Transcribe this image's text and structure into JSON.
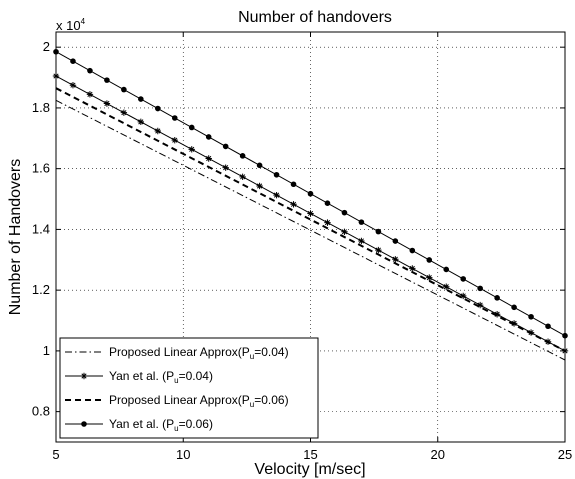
{
  "chart_data": {
    "type": "line",
    "title": "Number of handovers",
    "xlabel": "Velocity [m/sec]",
    "ylabel": "Number of Handovers",
    "y_multiplier": "x 10",
    "y_multiplier_exp": "4",
    "xlim": [
      5,
      25
    ],
    "ylim": [
      0.7,
      2.05
    ],
    "xticks": [
      5,
      10,
      15,
      20,
      25
    ],
    "yticks": [
      0.8,
      1.0,
      1.2,
      1.4,
      1.6,
      1.8,
      2.0
    ],
    "ytick_labels": [
      "0.8",
      "1",
      "1.2",
      "1.4",
      "1.6",
      "1.8",
      "2"
    ],
    "grid": true,
    "legend_position": "bottom-left",
    "series": [
      {
        "name": "Proposed Linear Approx(P_u=0.04)",
        "label_main": "Proposed Linear Approx(P",
        "label_sub": "u",
        "label_end": "=0.04)",
        "style": "dashdot",
        "marker": "none",
        "x": [
          5,
          25
        ],
        "y": [
          1.825,
          0.97
        ]
      },
      {
        "name": "Yan et al. (P_u=0.04)",
        "label_main": "Yan et al. (P",
        "label_sub": "u",
        "label_end": "=0.04)",
        "style": "solid",
        "marker": "star",
        "x": [
          5,
          25
        ],
        "y": [
          1.905,
          1.0
        ]
      },
      {
        "name": "Proposed Linear Approx(P_u=0.06)",
        "label_main": "Proposed Linear Approx(P",
        "label_sub": "u",
        "label_end": "=0.06)",
        "style": "dashed-bold",
        "marker": "none",
        "x": [
          5,
          25
        ],
        "y": [
          1.865,
          1.0
        ]
      },
      {
        "name": "Yan et al. (P_u=0.06)",
        "label_main": "Yan et al. (P",
        "label_sub": "u",
        "label_end": "=0.06)",
        "style": "solid",
        "marker": "dot",
        "x": [
          5,
          25
        ],
        "y": [
          1.985,
          1.05
        ]
      }
    ]
  }
}
